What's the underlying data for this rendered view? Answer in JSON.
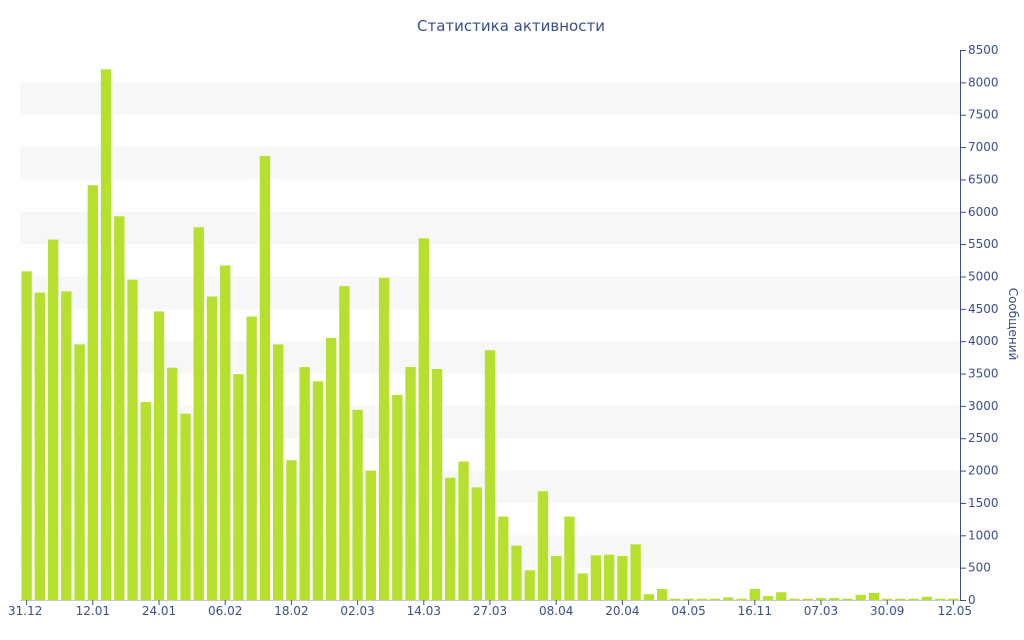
{
  "chart_data": {
    "type": "bar",
    "title": "Статистика активности",
    "ylabel": "Сообщений",
    "xlabel": "",
    "ylim": [
      0,
      8500
    ],
    "y_ticks": [
      0,
      500,
      1000,
      1500,
      2000,
      2500,
      3000,
      3500,
      4000,
      4500,
      5000,
      5500,
      6000,
      6500,
      7000,
      7500,
      8000,
      8500
    ],
    "y_axis_position": "right",
    "grid": "alternating horizontal bands",
    "bar_color": "#b5e02e",
    "band_color": "#f7f7f7",
    "text_color": "#3a4f8a",
    "x_tick_labels": [
      {
        "index": 0,
        "label": "31.12"
      },
      {
        "index": 5,
        "label": "12.01"
      },
      {
        "index": 10,
        "label": "24.01"
      },
      {
        "index": 15,
        "label": "06.02"
      },
      {
        "index": 20,
        "label": "18.02"
      },
      {
        "index": 25,
        "label": "02.03"
      },
      {
        "index": 30,
        "label": "14.03"
      },
      {
        "index": 35,
        "label": "27.03"
      },
      {
        "index": 40,
        "label": "08.04"
      },
      {
        "index": 45,
        "label": "20.04"
      },
      {
        "index": 50,
        "label": "04.05"
      },
      {
        "index": 55,
        "label": "16.11"
      },
      {
        "index": 60,
        "label": "07.03"
      },
      {
        "index": 65,
        "label": "30.09"
      },
      {
        "index": 70,
        "label": "12.05"
      }
    ],
    "values": [
      5080,
      4750,
      5570,
      4770,
      3950,
      6410,
      8200,
      5930,
      4950,
      3060,
      4460,
      3590,
      2880,
      5760,
      4690,
      5170,
      3490,
      4380,
      6860,
      3950,
      2160,
      3600,
      3380,
      4050,
      4850,
      2940,
      2000,
      4980,
      3170,
      3600,
      5590,
      3570,
      1890,
      2140,
      1740,
      3860,
      1290,
      840,
      460,
      1680,
      680,
      1290,
      410,
      690,
      700,
      680,
      860,
      90,
      170,
      20,
      20,
      20,
      20,
      40,
      20,
      170,
      60,
      120,
      20,
      20,
      30,
      30,
      20,
      80,
      110,
      20,
      20,
      20,
      50,
      20,
      20
    ]
  }
}
